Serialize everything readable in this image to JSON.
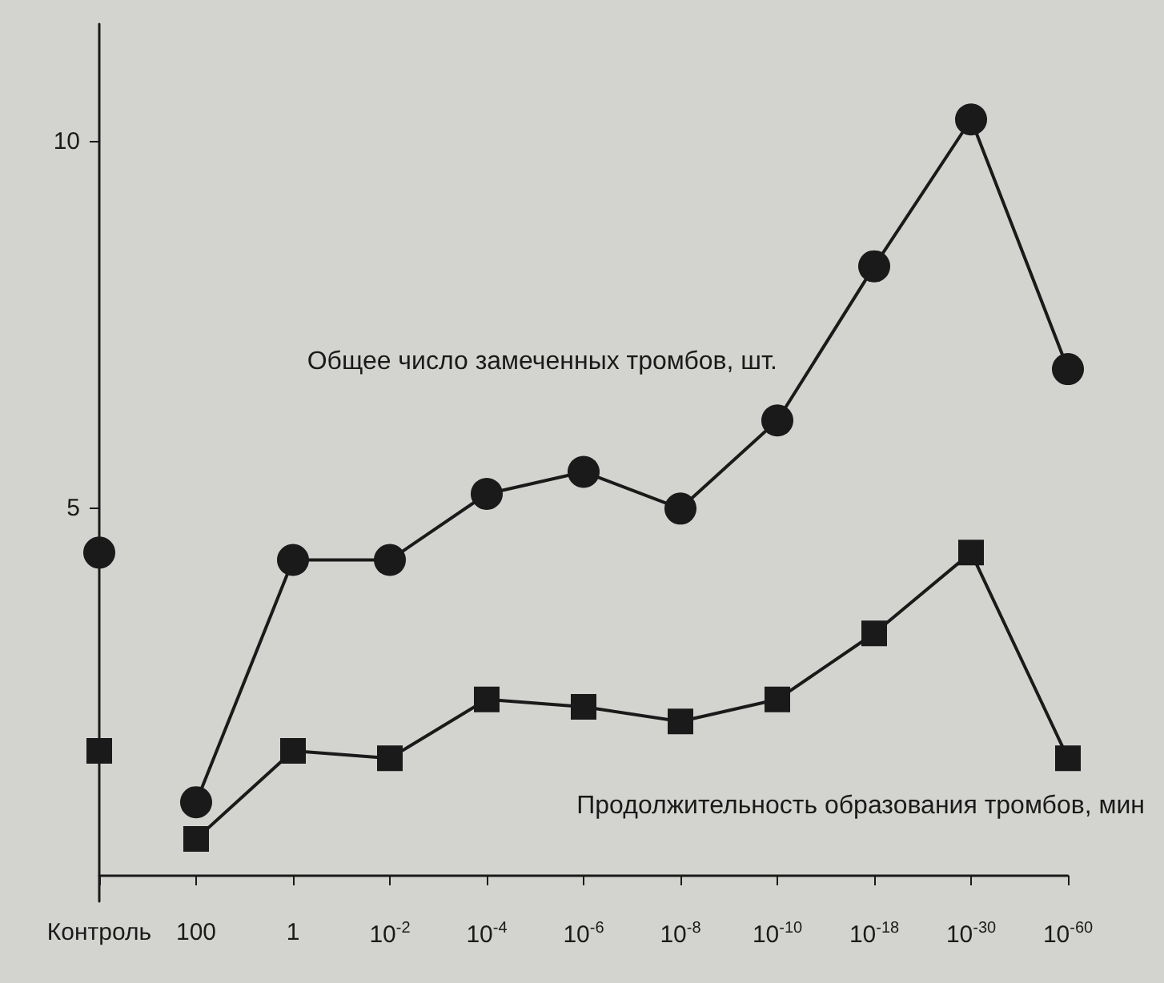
{
  "chart_data": {
    "type": "line",
    "categories": [
      "Контроль",
      "100",
      "1",
      "10$^{-2}$",
      "10$^{-4}$",
      "10$^{-6}$",
      "10$^{-8}$",
      "10$^{-10}$",
      "10$^{-18}$",
      "10$^{-30}$",
      "10$^{-60}$"
    ],
    "series": [
      {
        "name": "Общее число замеченных тромбов, шт.",
        "color": "#1a1a1a",
        "marker": "circle",
        "values": [
          null,
          1.0,
          4.3,
          4.3,
          5.2,
          5.5,
          5.0,
          6.2,
          8.3,
          10.3,
          6.9
        ]
      },
      {
        "name": "Продолжительность образования тромбов, мин",
        "color": "#1a1a1a",
        "marker": "square",
        "values": [
          null,
          0.5,
          1.7,
          1.6,
          2.4,
          2.3,
          2.1,
          2.4,
          3.3,
          4.4,
          1.6
        ]
      },
      {
        "type": "scatter",
        "color": "#1a1a1a",
        "marker": "circle",
        "x": [
          "Контроль"
        ],
        "values": [
          4.4
        ]
      },
      {
        "type": "scatter",
        "color": "#1a1a1a",
        "marker": "square",
        "x": [
          "Контроль"
        ],
        "values": [
          1.7
        ]
      }
    ],
    "ylim": [
      -0.35,
      11.6
    ],
    "yticks": [
      5,
      10
    ],
    "grid": false,
    "legend": false,
    "line_style": "solid"
  }
}
